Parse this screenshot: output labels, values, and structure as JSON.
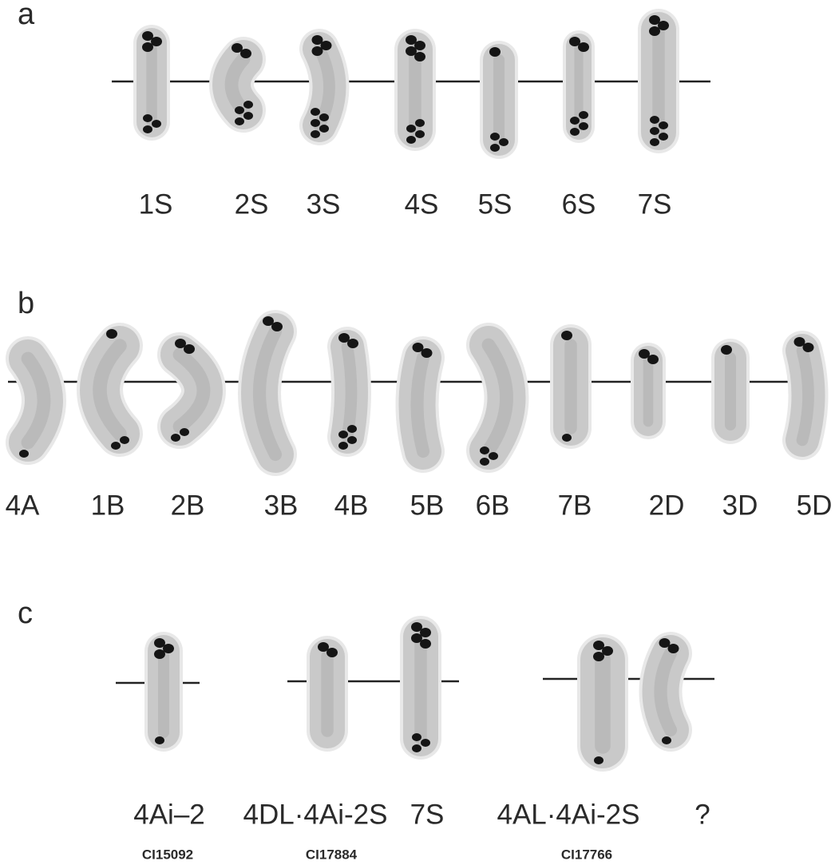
{
  "panels": [
    {
      "label": "a",
      "chromosomes": [
        "1S",
        "2S",
        "3S",
        "4S",
        "5S",
        "6S",
        "7S"
      ]
    },
    {
      "label": "b",
      "chromosomes": [
        "4A",
        "1B",
        "2B",
        "3B",
        "4B",
        "5B",
        "6B",
        "7B",
        "2D",
        "3D",
        "5D"
      ]
    },
    {
      "label": "c",
      "chromosomes": [
        "4Ai–2",
        "4DL·4Ai-2S",
        "7S",
        "4AL·4Ai-2S",
        "?"
      ],
      "accessions": [
        "CI15092",
        "CI17884",
        "CI17766"
      ]
    }
  ]
}
